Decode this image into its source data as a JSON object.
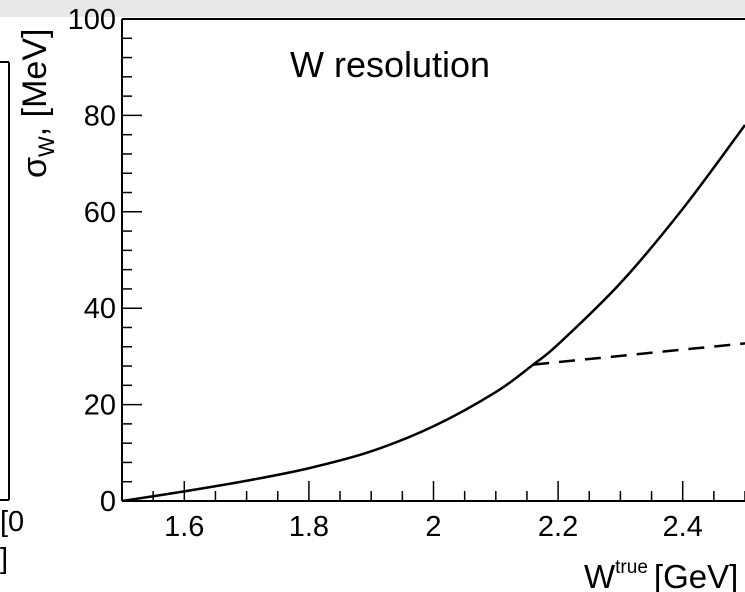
{
  "chart_data": {
    "type": "line",
    "title": "W resolution",
    "xlabel": {
      "base": "W",
      "superscript": "true",
      "unit": "[GeV]"
    },
    "ylabel": {
      "base": "σ",
      "subscript": "W",
      "unit": ", [MeV]"
    },
    "xlim": [
      1.5,
      2.5
    ],
    "ylim": [
      0,
      100
    ],
    "x_tick_labels": [
      "1.6",
      "1.8",
      "2",
      "2.2",
      "2.4"
    ],
    "y_tick_labels": [
      "0",
      "20",
      "40",
      "60",
      "80",
      "100"
    ],
    "series": [
      {
        "style": "solid",
        "color": "#000000",
        "x": [
          1.5,
          1.6,
          1.7,
          1.8,
          1.9,
          2.0,
          2.1,
          2.16,
          2.2,
          2.3,
          2.4,
          2.5
        ],
        "y": [
          0.0,
          2.0,
          4.2,
          6.8,
          10.3,
          15.5,
          22.6,
          28.3,
          32.5,
          45.2,
          60.6,
          78.0
        ]
      },
      {
        "style": "dashed",
        "color": "#000000",
        "x": [
          2.16,
          2.5
        ],
        "y": [
          28.3,
          32.7
        ]
      }
    ],
    "grid": false,
    "left_panel_fragments": [
      "[0",
      "]"
    ]
  }
}
